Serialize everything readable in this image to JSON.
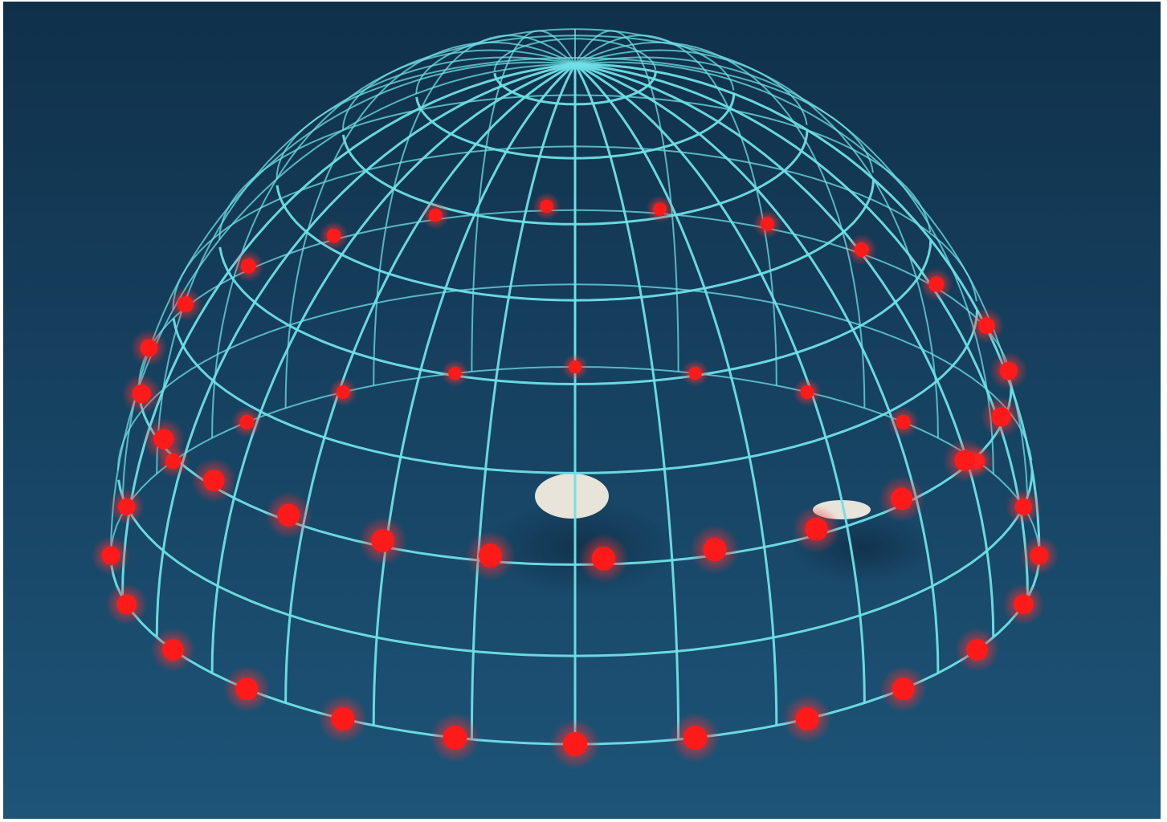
{
  "scene": {
    "description_visible_text": "",
    "colors": {
      "background_top": "#10304a",
      "background_bottom": "#1d5478",
      "wireframe": "#6fe0e6",
      "marker": "#ff1a1a",
      "marker_glow": "#ff3030",
      "object": "#e8e4da"
    },
    "dome": {
      "meridian_count": 28,
      "parallel_count": 9
    },
    "rings": [
      {
        "name": "equator-ring",
        "marker_count": 24
      },
      {
        "name": "upper-ring",
        "marker_count": 24
      }
    ],
    "objects": [
      {
        "name": "large-white-object"
      },
      {
        "name": "small-white-object"
      }
    ]
  }
}
